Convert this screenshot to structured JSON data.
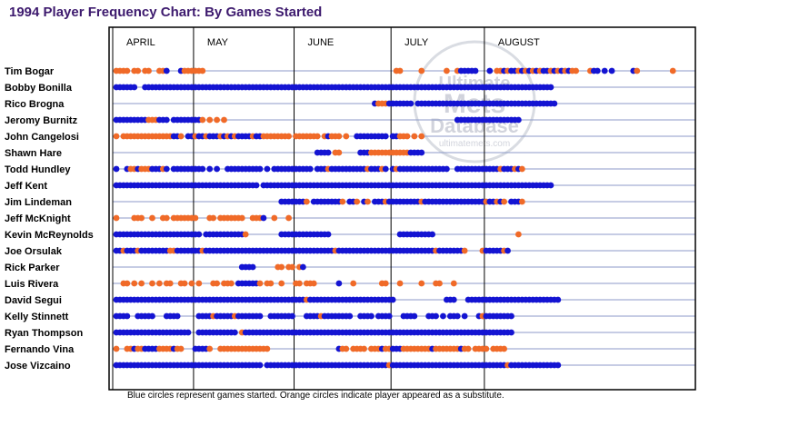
{
  "title": "1994 Player Frequency Chart: By Games Started",
  "caption": "Blue circles represent games started. Orange circles indicate player appeared as a substitute.",
  "watermark": {
    "line1": "Ultimate",
    "line2": "Mets",
    "line3": "Database",
    "url": "ultimatemets.com"
  },
  "colors": {
    "started": "#1414d2",
    "substitute": "#f06a28",
    "row_line": "#8c9ac8",
    "title": "#3d1a6e"
  },
  "chart_data": {
    "type": "scatter",
    "title": "1994 Player Frequency Chart: By Games Started",
    "x_unit": "team game number",
    "x_range": [
      1,
      113
    ],
    "months": [
      {
        "label": "APRIL",
        "start_game": 1
      },
      {
        "label": "MAY",
        "start_game": 23
      },
      {
        "label": "JUNE",
        "start_game": 51
      },
      {
        "label": "JULY",
        "start_game": 78
      },
      {
        "label": "AUGUST",
        "start_game": 104
      }
    ],
    "legend": {
      "S": "Blue circles represent games started",
      "B": "Orange circles indicate player appeared as a substitute"
    },
    "players": [
      {
        "name": "Tim Bogar",
        "games": "BBBB.BB.BB..BBS...SBBBBBB.....................................................BB.....B......B..BSSSSS...S.BBSBSSBSBSBSBSSBSBSBSBB...BSS.S.S.....SB.........B"
      },
      {
        "name": "Bobby Bonilla",
        "games": "SSSSSS..SSSSSSSSSSSSSSSSSSSSSSSSSSSSSSSSSSSSSSSSSSSSSSSSSSSSSSSSSSSSSSSSSSSSSSSSSSSSSSSSSSSSSSSSSSSSSSSSSSSSSSSSSSSSSSSSSS"
      },
      {
        "name": "Rico Brogna",
        "games": "........................................................................SBBBSSSSSSS.SSSSSSSSSSSSSSSSSSSSSSSSSSSSSSSSSSSSSSS"
      },
      {
        "name": "Jeromy Burnitz",
        "games": "SSSSSSSSSBBBSSS.SSSSSSSSB.B.B.B................................................................SSSSSSSSSSSSSSSSSS"
      },
      {
        "name": "John Cangelosi",
        "games": "B.BBBBBBBBBBBBBBSSB.SSBSSBSSSBSBSBSSSSBSSBBBBBBBB.BBBBBBB.BSBBB.B..SSSSSSSSS.SSBBB.B.B"
      },
      {
        "name": "Shawn Hare",
        "games": "........................................................SSSS.BB.....SSSBBBBBBBBBBBSSSS"
      },
      {
        "name": "Todd Hundley",
        "games": "S..SBBSBBBSSSBS.SSSSSSSSS.S.S..SSSSSSSSSS.S.SSSSSSSSSSS.SSSBSSSSSSSSSSBSSSBS.SBSSSSSSSSSSSSSS..SSSSSSSSSSSSBSSSBSB"
      },
      {
        "name": "Jeff Kent",
        "games": "SSSSSSSSSSSSSSSSSSSSSSSSSSSSSSSSSSSSSSSS.SSSSSSSSSSSSSSSSSSSSSSSSSSSSSSSSSSSSSSSSSSSSSSSSSSSSSSSSSSSSSSSSSSSSSSSSSSSSSSSSS"
      },
      {
        "name": "Jim Lindeman",
        "games": "..............................................SSSSSSSB.SSSSSSSSB.SSB.SB.SSSBSSSSSSSSSBSSSSSSSSSSSSSSSSSBSSBSB.SSSB"
      },
      {
        "name": "Jeff McKnight",
        "games": "B....BBB..B..BB.BBBBBBB...BB.BBBBBBB..BBBS..B...B"
      },
      {
        "name": "Kevin McReynolds",
        "games": "SSSSSSSSSSSSSSSSSSSSSSSS.SSSSSSSSSSSB.........SSSSSSSSSSSSSS...................SSSSSSSSSS.......................B"
      },
      {
        "name": "Joe Orsulak",
        "games": "SSBSSSBSSSSSSSSBBSSSSSSSBSSSSSSSSSSSSSSSSSSSSSSSSSSSSSSSSSSSSBSSSSSSSSSSSSSSSSSSSSSSSSSSSBSSSSSSSB....BSSSSSBS"
      },
      {
        "name": "Rick Parker",
        "games": "...................................SSSS......BB.BB.BS"
      },
      {
        "name": "Luis Rivera",
        "games": "..BB.B.B..B.B.BB..BB.B.B...BB.BBB.SSSSSSB.BB..B...BB.BBB......S...B.......BB...B.....B...BB...B"
      },
      {
        "name": "David Segui",
        "games": "SSSSSSSSSSSSSSSSSSSSSSSSSSSSSSSSSSSSSSSSSSSSSSSSSSSSSBSSSSSSSSSSSSSSSSSSSSSSSS..............SSS...SSSSSSSSSSSSSSSSSSSSSSSSSS"
      },
      {
        "name": "Kelly Stinnett",
        "games": "SSSS..SSSSS...SSSS.....SSSSBSSSSSBSSSSSSS..SSSSSSS...SSSSBSSSSSSSS..SSSS.SSSS...SSSS...SSS.S.SSS.S...SBSSSSSSSS"
      },
      {
        "name": "Ryan Thompson",
        "games": "SSSSSSSSSSSSSSSSSSSSS..SSSSSSSSSSS.BSSSSSSSSSSSSSSSSSSSSSSSSSSSSSSSSSSSSSSSSSSSSSSSSSSSSSSSSSSSSSSSSSSSSSSSSSSS"
      },
      {
        "name": "Fernando Vina",
        "games": "B..BBSBBSSSSBBBBSBB...SSSSB..BBBBBBBBBBBBBB...................SBB.BBBB.BBBSBBSSSBBBBBBBBSBBBBBBBSBB.BBBB.BBBB"
      },
      {
        "name": "Jose Vizcaino",
        "games": "SSSSSSSSSSSSSSSSSSSSSSSSSSSSSSSSSSSSSSSSS.SSSSSSSSSSSSSSSSSSSSSSSSSSSSSSSSSSBSSSSSSSSSSSSSSSSSSSSSSSSSSSSSSSSBSSSSSSSSSSSSSS"
      }
    ]
  }
}
